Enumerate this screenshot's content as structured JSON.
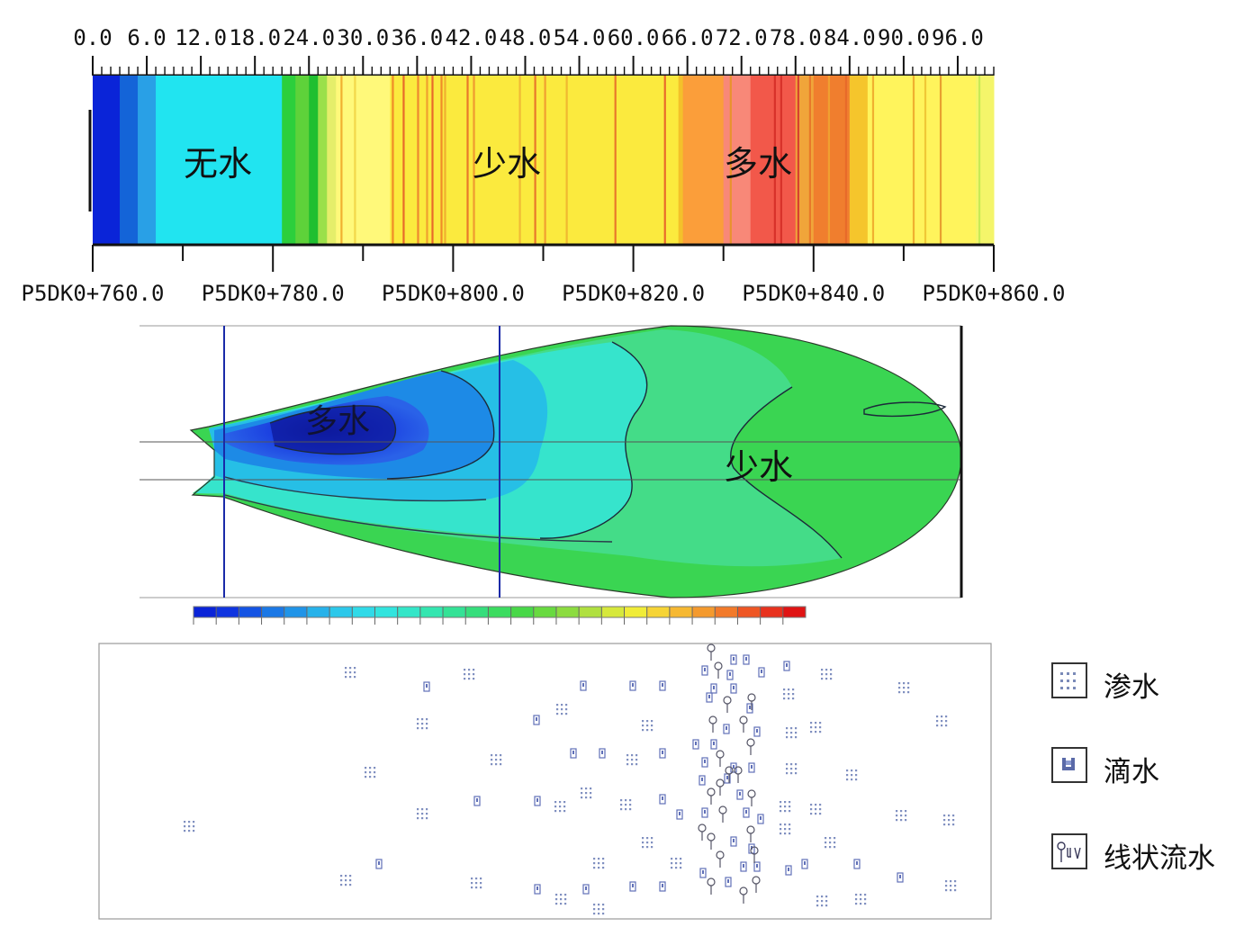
{
  "top_strip": {
    "scale_labels": [
      "0.0",
      "6.0",
      "12.0",
      "18.0",
      "24.0",
      "30.0",
      "36.0",
      "42.0",
      "48.0",
      "54.0",
      "60.0",
      "66.0",
      "72.0",
      "78.0",
      "84.0",
      "90.0",
      "96.0"
    ],
    "scale_max": 100,
    "chainage_labels": [
      "P5DK0+760.0",
      "P5DK0+780.0",
      "P5DK0+800.0",
      "P5DK0+820.0",
      "P5DK0+840.0",
      "P5DK0+860.0"
    ],
    "zone_labels": [
      "无水",
      "少水",
      "多水"
    ],
    "color_bands": [
      {
        "from": 0,
        "to": 3,
        "color": "#0a24d8"
      },
      {
        "from": 3,
        "to": 5,
        "color": "#1464d8"
      },
      {
        "from": 5,
        "to": 7,
        "color": "#29a0e6"
      },
      {
        "from": 7,
        "to": 21,
        "color": "#21e4f0"
      },
      {
        "from": 21,
        "to": 22.5,
        "color": "#2ccf3c"
      },
      {
        "from": 22.5,
        "to": 24,
        "color": "#5ed23a"
      },
      {
        "from": 24,
        "to": 25,
        "color": "#1fbf30"
      },
      {
        "from": 25,
        "to": 26,
        "color": "#9be04a"
      },
      {
        "from": 26,
        "to": 27,
        "color": "#e5ee6a"
      },
      {
        "from": 27,
        "to": 33,
        "color": "#fff97a"
      },
      {
        "from": 33,
        "to": 65,
        "color": "#fbea3e"
      },
      {
        "from": 65,
        "to": 65.5,
        "color": "#f3c12a"
      },
      {
        "from": 65.5,
        "to": 70,
        "color": "#fb9e3a"
      },
      {
        "from": 70,
        "to": 73,
        "color": "#f88878"
      },
      {
        "from": 73,
        "to": 78,
        "color": "#f2584a"
      },
      {
        "from": 78,
        "to": 80,
        "color": "#f0a53a"
      },
      {
        "from": 80,
        "to": 84,
        "color": "#f07e2e"
      },
      {
        "from": 84,
        "to": 86,
        "color": "#f5c52c"
      },
      {
        "from": 86,
        "to": 98,
        "color": "#fff45c"
      },
      {
        "from": 98,
        "to": 100,
        "color": "#f4f56a"
      }
    ],
    "stripes": [
      {
        "at": 27.5,
        "color": "#f0b030"
      },
      {
        "at": 29.0,
        "color": "#f2d84a"
      },
      {
        "at": 33.2,
        "color": "#f08c28"
      },
      {
        "at": 34.4,
        "color": "#e86a2a"
      },
      {
        "at": 36.0,
        "color": "#ee8830"
      },
      {
        "at": 37.0,
        "color": "#f0a030"
      },
      {
        "at": 37.6,
        "color": "#e86a2a"
      },
      {
        "at": 38.6,
        "color": "#f08c28"
      },
      {
        "at": 39.0,
        "color": "#f0b030"
      },
      {
        "at": 41.5,
        "color": "#e8782a"
      },
      {
        "at": 42.2,
        "color": "#f09a30"
      },
      {
        "at": 47.3,
        "color": "#f0ba36"
      },
      {
        "at": 49.0,
        "color": "#e8782a"
      },
      {
        "at": 50.1,
        "color": "#f0a030"
      },
      {
        "at": 52.5,
        "color": "#f0b830"
      },
      {
        "at": 57.9,
        "color": "#e8782a"
      },
      {
        "at": 63.4,
        "color": "#e86a2a"
      },
      {
        "at": 70.7,
        "color": "#e8922e"
      },
      {
        "at": 75.6,
        "color": "#d8322a"
      },
      {
        "at": 76.3,
        "color": "#d8322a"
      },
      {
        "at": 78.2,
        "color": "#d84030"
      },
      {
        "at": 79.5,
        "color": "#e8782a"
      },
      {
        "at": 81.6,
        "color": "#f0a030"
      },
      {
        "at": 83.5,
        "color": "#e86a2a"
      },
      {
        "at": 86.5,
        "color": "#f0b030"
      },
      {
        "at": 91.0,
        "color": "#f0b030"
      },
      {
        "at": 92.3,
        "color": "#f0c836"
      },
      {
        "at": 94.0,
        "color": "#e8a030"
      },
      {
        "at": 98.3,
        "color": "#c8ea54"
      }
    ]
  },
  "contour_map": {
    "zone_labels": [
      "多水",
      "少水"
    ],
    "colorbar": [
      "#0a24d8",
      "#0f34e0",
      "#1454e4",
      "#1b78e6",
      "#2094e8",
      "#27b2ea",
      "#2cc8ea",
      "#30dae8",
      "#32e4de",
      "#34e6c8",
      "#34e6b0",
      "#34e296",
      "#36de7c",
      "#3cdc60",
      "#48d848",
      "#68da40",
      "#8cdc40",
      "#b0e040",
      "#d6e83c",
      "#f0ec38",
      "#f6d436",
      "#f6b832",
      "#f49a2e",
      "#f27a2a",
      "#ee5624",
      "#e8321e",
      "#e01414"
    ]
  },
  "observation_map": {
    "legend": [
      {
        "label": "渗水",
        "icon": "seepage-icon"
      },
      {
        "label": "滴水",
        "icon": "dripping-icon"
      },
      {
        "label": "线状流水",
        "icon": "linear-flow-icon"
      }
    ],
    "icon_seepage": "seepage",
    "icon_drip": "drip",
    "icon_flow": "flow"
  }
}
